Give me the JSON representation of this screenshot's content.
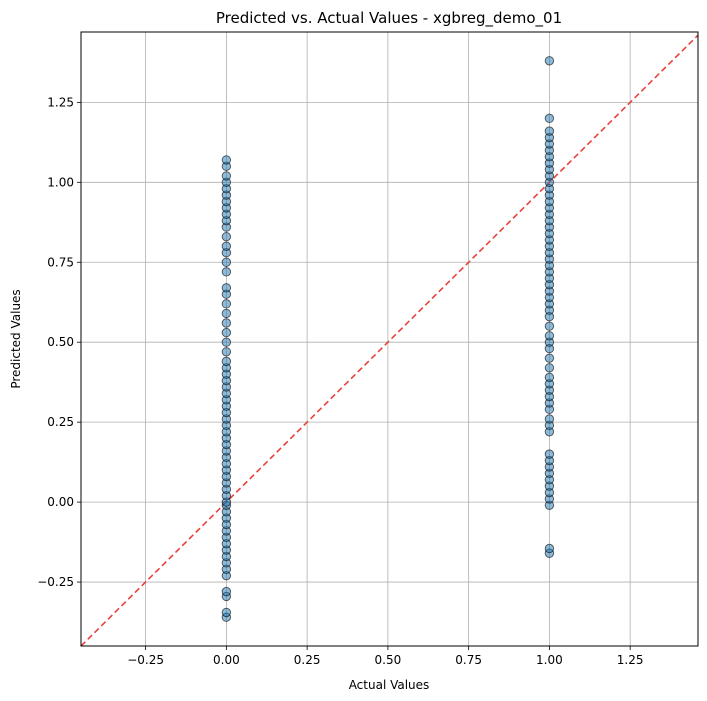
{
  "chart_data": {
    "type": "scatter",
    "title": "Predicted vs. Actual Values - xgbreg_demo_01",
    "xlabel": "Actual Values",
    "ylabel": "Predicted Values",
    "xlim": [
      -0.45,
      1.46
    ],
    "ylim": [
      -0.45,
      1.47
    ],
    "x_ticks": [
      -0.25,
      0.0,
      0.25,
      0.5,
      0.75,
      1.0,
      1.25
    ],
    "x_tick_labels": [
      "−0.25",
      "0.00",
      "0.25",
      "0.50",
      "0.75",
      "1.00",
      "1.25"
    ],
    "y_ticks": [
      -0.25,
      0.0,
      0.25,
      0.5,
      0.75,
      1.0,
      1.25
    ],
    "y_tick_labels": [
      "−0.25",
      "0.00",
      "0.25",
      "0.50",
      "0.75",
      "1.00",
      "1.25"
    ],
    "grid": true,
    "reference_line": {
      "style": "dashed",
      "color": "#e8413c",
      "from": [
        -0.45,
        -0.45
      ],
      "to": [
        1.46,
        1.46
      ]
    },
    "marker_color": "#1f77b4",
    "marker_edge_color": "#000000",
    "series": [
      {
        "x": 0,
        "y": [
          -0.36,
          -0.345,
          -0.295,
          -0.28,
          -0.23,
          -0.21,
          -0.19,
          -0.17,
          -0.15,
          -0.13,
          -0.11,
          -0.09,
          -0.07,
          -0.05,
          -0.03,
          -0.01,
          0.0,
          0.02,
          0.04,
          0.06,
          0.08,
          0.1,
          0.12,
          0.14,
          0.16,
          0.18,
          0.2,
          0.22,
          0.24,
          0.26,
          0.28,
          0.3,
          0.32,
          0.34,
          0.36,
          0.38,
          0.4,
          0.42,
          0.44,
          0.47,
          0.5,
          0.53,
          0.56,
          0.59,
          0.62,
          0.65,
          0.67,
          0.72,
          0.75,
          0.78,
          0.8,
          0.83,
          0.86,
          0.88,
          0.9,
          0.92,
          0.94,
          0.96,
          0.98,
          1.0,
          1.02,
          1.05,
          1.07
        ]
      },
      {
        "x": 1,
        "y": [
          -0.16,
          -0.145,
          -0.01,
          0.01,
          0.03,
          0.05,
          0.07,
          0.09,
          0.11,
          0.13,
          0.15,
          0.22,
          0.24,
          0.26,
          0.29,
          0.31,
          0.33,
          0.35,
          0.37,
          0.39,
          0.42,
          0.45,
          0.48,
          0.5,
          0.52,
          0.55,
          0.58,
          0.6,
          0.62,
          0.64,
          0.66,
          0.68,
          0.7,
          0.72,
          0.74,
          0.76,
          0.78,
          0.8,
          0.82,
          0.84,
          0.86,
          0.88,
          0.9,
          0.92,
          0.94,
          0.96,
          0.98,
          1.0,
          1.02,
          1.04,
          1.06,
          1.08,
          1.1,
          1.12,
          1.14,
          1.16,
          1.2,
          1.38
        ]
      }
    ]
  }
}
